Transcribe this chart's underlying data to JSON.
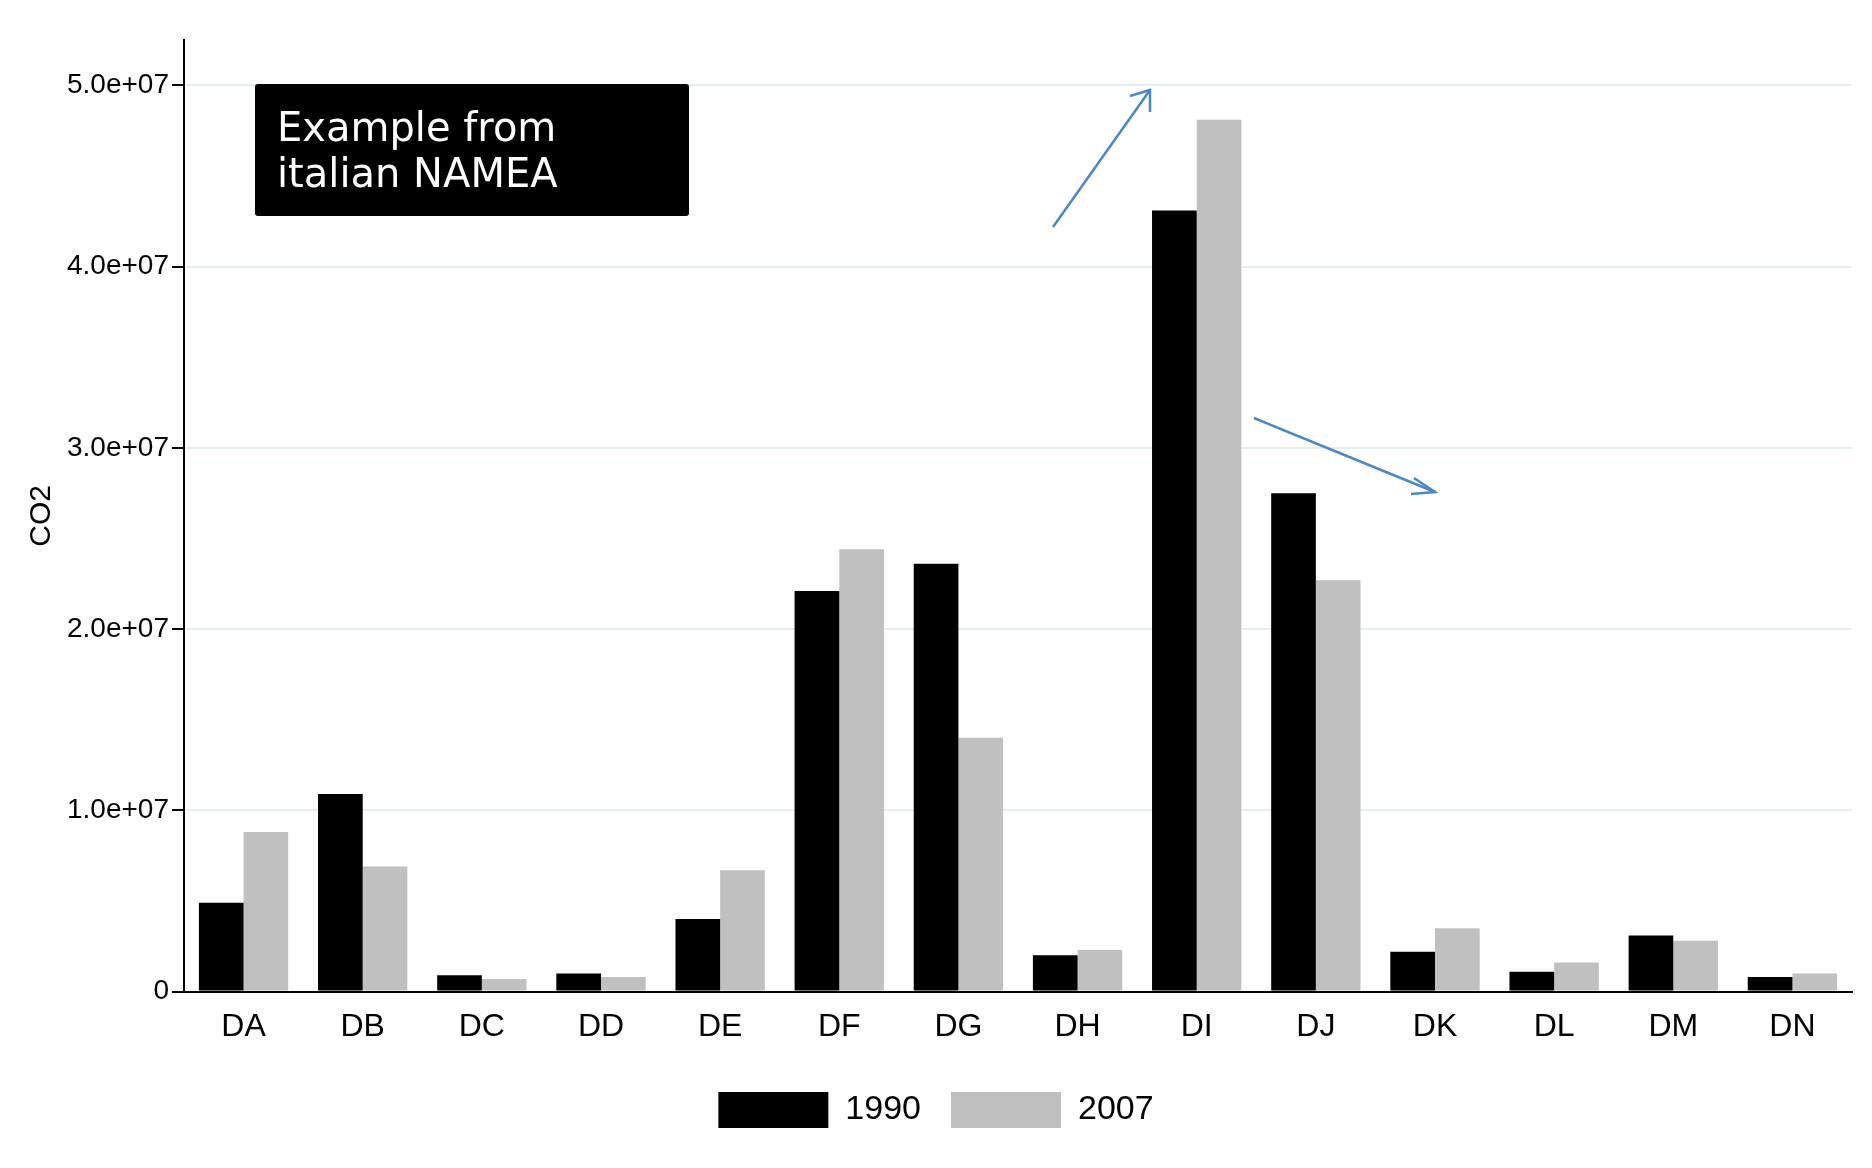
{
  "chart_data": {
    "type": "bar",
    "ylabel": "CO2",
    "categories": [
      "DA",
      "DB",
      "DC",
      "DD",
      "DE",
      "DF",
      "DG",
      "DH",
      "DI",
      "DJ",
      "DK",
      "DL",
      "DM",
      "DN"
    ],
    "series": [
      {
        "name": "1990",
        "color": "#000000",
        "values": [
          4900000,
          10900000,
          900000,
          1000000,
          4000000,
          22100000,
          23600000,
          2000000,
          43100000,
          27500000,
          2200000,
          1100000,
          3100000,
          800000
        ]
      },
      {
        "name": "2007",
        "color": "#c0c0c0",
        "values": [
          8800000,
          6900000,
          700000,
          800000,
          6700000,
          24400000,
          14000000,
          2300000,
          48100000,
          22700000,
          3500000,
          1600000,
          2800000,
          1000000
        ]
      }
    ],
    "ylim": [
      0,
      52500000
    ],
    "yticks": [
      {
        "value": 0,
        "label": "0"
      },
      {
        "value": 10000000,
        "label": "1.0e+07"
      },
      {
        "value": 20000000,
        "label": "2.0e+07"
      },
      {
        "value": 30000000,
        "label": "3.0e+07"
      },
      {
        "value": 40000000,
        "label": "4.0e+07"
      },
      {
        "value": 50000000,
        "label": "5.0e+07"
      }
    ],
    "grid": "y",
    "legend": "bottom",
    "annotations": [
      "Example from\nitalian NAMEA"
    ]
  }
}
